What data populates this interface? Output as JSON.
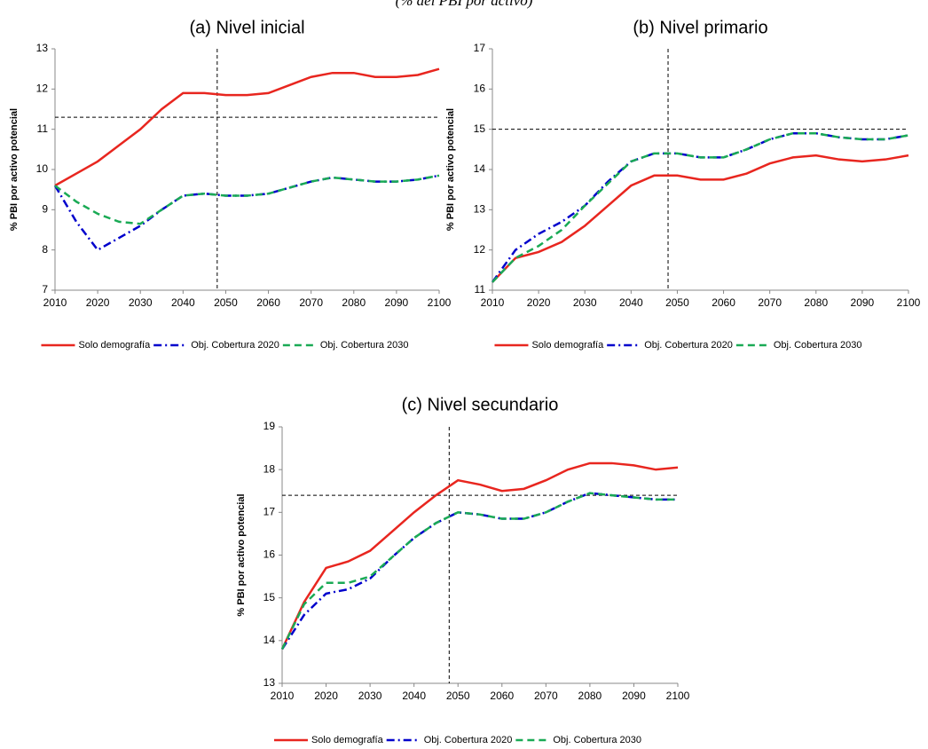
{
  "caption": "(% del PBI por activo)",
  "chart_data": [
    {
      "type": "line",
      "title": "(a) Nivel inicial",
      "ylabel": "% PBI por activo potencial",
      "x": [
        2010,
        2015,
        2020,
        2025,
        2030,
        2035,
        2040,
        2045,
        2050,
        2055,
        2060,
        2065,
        2070,
        2075,
        2080,
        2085,
        2090,
        2095,
        2100
      ],
      "xlim": [
        2010,
        2100
      ],
      "xticks": [
        2010,
        2020,
        2030,
        2040,
        2050,
        2060,
        2070,
        2080,
        2090,
        2100
      ],
      "ylim": [
        7,
        13
      ],
      "yticks": [
        7,
        8,
        9,
        10,
        11,
        12,
        13
      ],
      "hline": 11.3,
      "vline": 2048,
      "legend": "bottom",
      "series": [
        {
          "name": "Solo demografía",
          "color": "#e8261f",
          "line_style": "solid",
          "values": [
            9.6,
            9.9,
            10.2,
            10.6,
            11.0,
            11.5,
            11.9,
            11.9,
            11.85,
            11.85,
            11.9,
            12.1,
            12.3,
            12.4,
            12.4,
            12.3,
            12.3,
            12.35,
            12.5
          ]
        },
        {
          "name": "Obj. Cobertura 2020",
          "color": "#0000cc",
          "line_style": "dashdot",
          "values": [
            9.6,
            8.7,
            8.0,
            8.3,
            8.6,
            9.0,
            9.35,
            9.4,
            9.35,
            9.35,
            9.4,
            9.55,
            9.7,
            9.8,
            9.75,
            9.7,
            9.7,
            9.75,
            9.85
          ]
        },
        {
          "name": "Obj. Cobertura 2030",
          "color": "#1aaa55",
          "line_style": "dashed",
          "values": [
            9.6,
            9.2,
            8.9,
            8.7,
            8.65,
            9.0,
            9.35,
            9.4,
            9.35,
            9.35,
            9.4,
            9.55,
            9.7,
            9.8,
            9.75,
            9.7,
            9.7,
            9.75,
            9.85
          ]
        }
      ]
    },
    {
      "type": "line",
      "title": "(b) Nivel primario",
      "ylabel": "% PBI por activo potencial",
      "x": [
        2010,
        2015,
        2020,
        2025,
        2030,
        2035,
        2040,
        2045,
        2050,
        2055,
        2060,
        2065,
        2070,
        2075,
        2080,
        2085,
        2090,
        2095,
        2100
      ],
      "xlim": [
        2010,
        2100
      ],
      "xticks": [
        2010,
        2020,
        2030,
        2040,
        2050,
        2060,
        2070,
        2080,
        2090,
        2100
      ],
      "ylim": [
        11,
        17
      ],
      "yticks": [
        11,
        12,
        13,
        14,
        15,
        16,
        17
      ],
      "hline": 15,
      "vline": 2048,
      "legend": "bottom",
      "series": [
        {
          "name": "Solo demografía",
          "color": "#e8261f",
          "line_style": "solid",
          "values": [
            11.2,
            11.8,
            11.95,
            12.2,
            12.6,
            13.1,
            13.6,
            13.85,
            13.85,
            13.75,
            13.75,
            13.9,
            14.15,
            14.3,
            14.35,
            14.25,
            14.2,
            14.25,
            14.35
          ]
        },
        {
          "name": "Obj. Cobertura 2020",
          "color": "#0000cc",
          "line_style": "dashdot",
          "values": [
            11.2,
            12.0,
            12.4,
            12.7,
            13.1,
            13.7,
            14.2,
            14.4,
            14.4,
            14.3,
            14.3,
            14.5,
            14.75,
            14.9,
            14.9,
            14.8,
            14.75,
            14.75,
            14.85
          ]
        },
        {
          "name": "Obj. Cobertura 2030",
          "color": "#1aaa55",
          "line_style": "dashed",
          "values": [
            11.2,
            11.8,
            12.1,
            12.5,
            13.1,
            13.65,
            14.2,
            14.4,
            14.4,
            14.3,
            14.3,
            14.5,
            14.75,
            14.9,
            14.9,
            14.8,
            14.75,
            14.75,
            14.85
          ]
        }
      ]
    },
    {
      "type": "line",
      "title": "(c) Nivel secundario",
      "ylabel": "% PBI por activo potencial",
      "x": [
        2010,
        2015,
        2020,
        2025,
        2030,
        2035,
        2040,
        2045,
        2050,
        2055,
        2060,
        2065,
        2070,
        2075,
        2080,
        2085,
        2090,
        2095,
        2100
      ],
      "xlim": [
        2010,
        2100
      ],
      "xticks": [
        2010,
        2020,
        2030,
        2040,
        2050,
        2060,
        2070,
        2080,
        2090,
        2100
      ],
      "ylim": [
        13,
        19
      ],
      "yticks": [
        13,
        14,
        15,
        16,
        17,
        18,
        19
      ],
      "hline": 17.4,
      "vline": 2048,
      "legend": "bottom",
      "series": [
        {
          "name": "Solo demografía",
          "color": "#e8261f",
          "line_style": "solid",
          "values": [
            13.8,
            14.9,
            15.7,
            15.85,
            16.1,
            16.55,
            17.0,
            17.4,
            17.75,
            17.65,
            17.5,
            17.55,
            17.75,
            18.0,
            18.15,
            18.15,
            18.1,
            18.0,
            18.05
          ]
        },
        {
          "name": "Obj. Cobertura 2020",
          "color": "#0000cc",
          "line_style": "dashdot",
          "values": [
            13.8,
            14.6,
            15.1,
            15.2,
            15.45,
            15.95,
            16.4,
            16.75,
            17.0,
            16.95,
            16.85,
            16.85,
            17.0,
            17.25,
            17.45,
            17.4,
            17.35,
            17.3,
            17.3
          ]
        },
        {
          "name": "Obj. Cobertura 2030",
          "color": "#1aaa55",
          "line_style": "dashed",
          "values": [
            13.8,
            14.85,
            15.35,
            15.35,
            15.5,
            15.95,
            16.4,
            16.75,
            17.0,
            16.95,
            16.85,
            16.85,
            17.0,
            17.25,
            17.45,
            17.4,
            17.35,
            17.3,
            17.3
          ]
        }
      ]
    }
  ]
}
